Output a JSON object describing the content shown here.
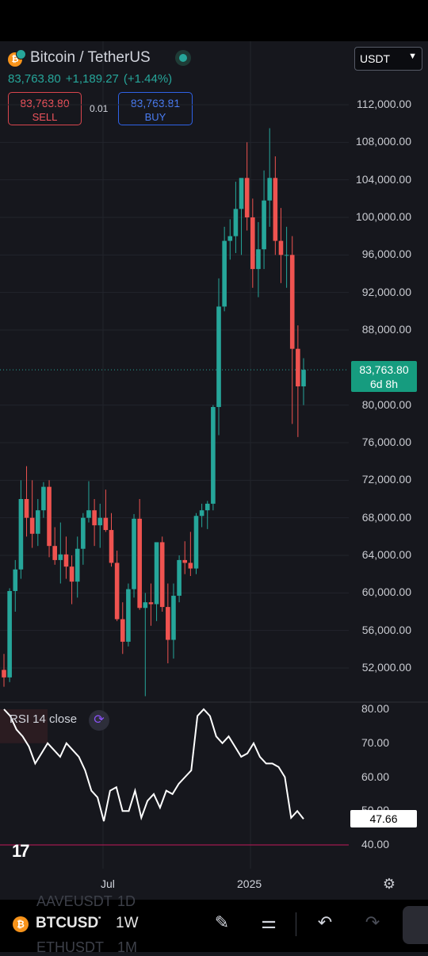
{
  "header": {
    "pair": "Bitcoin / TetherUS",
    "coin_icon": "bitcoin-icon",
    "currency": "USDT",
    "last_price": "83,763.80",
    "change": "+1,189.27",
    "change_pct": "(+1.44%)",
    "sell_price": "83,763.80",
    "sell_label": "SELL",
    "buy_price": "83,763.81",
    "buy_label": "BUY",
    "spread": "0.01"
  },
  "price_axis": {
    "labels": [
      "112,000.00",
      "108,000.00",
      "104,000.00",
      "100,000.00",
      "96,000.00",
      "92,000.00",
      "88,000.00",
      "80,000.00",
      "76,000.00",
      "72,000.00",
      "68,000.00",
      "64,000.00",
      "60,000.00",
      "56,000.00",
      "52,000.00"
    ],
    "current_price": "83,763.80",
    "countdown": "6d 8h"
  },
  "rsi": {
    "legend": "RSI 14 close",
    "axis": [
      "80.00",
      "70.00",
      "60.00",
      "50.00",
      "40.00"
    ],
    "value": "47.66"
  },
  "time_axis": {
    "labels": [
      "Jul",
      "2025"
    ]
  },
  "bottom_bar": {
    "symbol": "BTCUSDT",
    "interval": "1W",
    "ghost_symbol_above": "AAVEUSDT",
    "ghost_interval_above": "1D",
    "ghost_symbol_below": "ETHUSDT",
    "ghost_interval_below": "1M"
  },
  "colors": {
    "up": "#26a69a",
    "down": "#ef5350",
    "background": "#16171d"
  },
  "chart_data": {
    "type": "candlestick",
    "interval": "1W",
    "y_range": [
      49000,
      114000
    ],
    "candles_ohlc": [
      [
        51800,
        53500,
        50000,
        51000
      ],
      [
        51000,
        60500,
        50500,
        60200
      ],
      [
        60200,
        63500,
        58000,
        62500
      ],
      [
        62500,
        72000,
        61500,
        70000
      ],
      [
        70000,
        73500,
        66000,
        68000
      ],
      [
        68000,
        72000,
        64800,
        66300
      ],
      [
        66300,
        70000,
        65000,
        68800
      ],
      [
        68800,
        71800,
        68000,
        71300
      ],
      [
        71300,
        72000,
        63800,
        65000
      ],
      [
        65000,
        67000,
        63000,
        63500
      ],
      [
        63500,
        67500,
        61000,
        64100
      ],
      [
        64100,
        66000,
        61500,
        62800
      ],
      [
        62800,
        64000,
        58800,
        61200
      ],
      [
        61200,
        66000,
        59500,
        64700
      ],
      [
        64700,
        68500,
        63000,
        68000
      ],
      [
        68000,
        71900,
        67500,
        68800
      ],
      [
        68800,
        70000,
        65000,
        67200
      ],
      [
        67200,
        69500,
        64800,
        68000
      ],
      [
        68000,
        71000,
        66500,
        66700
      ],
      [
        66700,
        68500,
        62800,
        63200
      ],
      [
        63200,
        64500,
        57000,
        57200
      ],
      [
        57200,
        59000,
        53500,
        54800
      ],
      [
        54800,
        61000,
        54300,
        60400
      ],
      [
        60400,
        68400,
        59500,
        67900
      ],
      [
        67900,
        70000,
        58200,
        58400
      ],
      [
        58400,
        60000,
        49000,
        59000
      ],
      [
        59000,
        61000,
        56500,
        58800
      ],
      [
        58800,
        65000,
        57000,
        65400
      ],
      [
        65400,
        66000,
        58000,
        58500
      ],
      [
        58500,
        61000,
        52500,
        55000
      ],
      [
        55000,
        61000,
        53000,
        59700
      ],
      [
        59700,
        64000,
        59000,
        63500
      ],
      [
        63500,
        65500,
        62000,
        63200
      ],
      [
        63200,
        66500,
        61800,
        62600
      ],
      [
        62600,
        68500,
        62000,
        68200
      ],
      [
        68200,
        69500,
        67000,
        68800
      ],
      [
        68800,
        69800,
        66800,
        69500
      ],
      [
        69500,
        80000,
        68800,
        79800
      ],
      [
        79800,
        93500,
        76800,
        90500
      ],
      [
        90500,
        99000,
        90000,
        97500
      ],
      [
        97500,
        99800,
        95500,
        98000
      ],
      [
        98000,
        103800,
        96200,
        100900
      ],
      [
        100900,
        104000,
        96000,
        104200
      ],
      [
        104200,
        108000,
        98600,
        100000
      ],
      [
        100000,
        102000,
        92500,
        94500
      ],
      [
        94500,
        99500,
        91500,
        96600
      ],
      [
        96600,
        105000,
        94500,
        101800
      ],
      [
        101800,
        109500,
        99000,
        104200
      ],
      [
        104200,
        106500,
        96000,
        97500
      ],
      [
        97500,
        101000,
        93000,
        96000
      ],
      [
        96000,
        99000,
        92500,
        96000
      ],
      [
        96000,
        98000,
        78000,
        86000
      ],
      [
        86000,
        88500,
        76600,
        82000
      ],
      [
        82000,
        85000,
        80000,
        83763.8
      ]
    ],
    "current_price": 83763.8,
    "rsi_period": 14,
    "rsi_values": [
      80,
      78,
      74,
      72,
      69,
      64,
      67,
      70,
      68,
      66,
      70,
      68,
      66,
      62,
      56,
      54,
      47,
      56,
      57,
      50,
      50,
      56,
      48,
      53,
      55,
      51,
      56,
      55,
      58,
      60,
      62,
      78,
      80,
      78,
      72,
      70,
      72,
      69,
      66,
      67,
      70,
      66,
      64,
      64,
      63,
      60,
      48,
      50,
      47.66
    ],
    "rsi_range": [
      35,
      82
    ],
    "time_labels": [
      "Jul",
      "2025"
    ]
  }
}
